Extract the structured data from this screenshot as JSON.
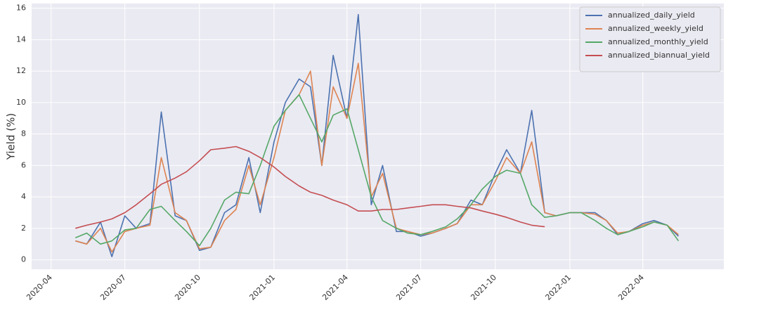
{
  "chart_data": {
    "type": "line",
    "ylabel": "Yield (%)",
    "x": [
      "2020-05-01",
      "2020-05-15",
      "2020-06-01",
      "2020-06-15",
      "2020-07-01",
      "2020-07-15",
      "2020-08-01",
      "2020-08-15",
      "2020-09-01",
      "2020-09-15",
      "2020-10-01",
      "2020-10-15",
      "2020-11-01",
      "2020-11-15",
      "2020-12-01",
      "2020-12-15",
      "2021-01-01",
      "2021-01-15",
      "2021-02-01",
      "2021-02-15",
      "2021-03-01",
      "2021-03-15",
      "2021-04-01",
      "2021-04-15",
      "2021-05-01",
      "2021-05-15",
      "2021-06-01",
      "2021-06-15",
      "2021-07-01",
      "2021-07-15",
      "2021-08-01",
      "2021-08-15",
      "2021-09-01",
      "2021-09-15",
      "2021-10-01",
      "2021-10-15",
      "2021-11-01",
      "2021-11-15",
      "2021-12-01",
      "2021-12-15",
      "2022-01-01",
      "2022-01-15",
      "2022-02-01",
      "2022-02-15",
      "2022-03-01",
      "2022-03-15",
      "2022-04-01",
      "2022-04-15",
      "2022-05-01",
      "2022-05-15"
    ],
    "series": [
      {
        "name": "annualized_daily_yield",
        "color": "#4c72b0",
        "values": [
          1.2,
          1.0,
          2.4,
          0.2,
          2.8,
          2.0,
          2.3,
          9.4,
          2.8,
          2.5,
          0.6,
          0.8,
          3.0,
          3.5,
          6.5,
          3.0,
          7.5,
          10.0,
          11.5,
          11.0,
          6.0,
          13.0,
          9.0,
          15.6,
          3.5,
          6.0,
          1.8,
          1.8,
          1.5,
          1.7,
          2.0,
          2.3,
          3.8,
          3.5,
          5.5,
          7.0,
          5.5,
          9.5,
          3.0,
          2.8,
          3.0,
          3.0,
          3.0,
          2.5,
          1.6,
          1.8,
          2.3,
          2.5,
          2.2,
          1.5
        ]
      },
      {
        "name": "annualized_weekly_yield",
        "color": "#dd8452",
        "values": [
          1.2,
          1.0,
          2.0,
          0.5,
          1.8,
          2.0,
          2.2,
          6.5,
          3.0,
          2.5,
          0.7,
          0.8,
          2.5,
          3.2,
          6.0,
          3.5,
          6.5,
          9.5,
          10.5,
          12.0,
          6.0,
          11.0,
          9.0,
          12.5,
          4.0,
          5.5,
          2.0,
          1.8,
          1.6,
          1.7,
          2.0,
          2.3,
          3.5,
          3.5,
          5.0,
          6.5,
          5.5,
          7.5,
          3.0,
          2.8,
          3.0,
          3.0,
          2.9,
          2.5,
          1.7,
          1.8,
          2.2,
          2.4,
          2.2,
          1.6
        ]
      },
      {
        "name": "annualized_monthly_yield",
        "color": "#55a868",
        "values": [
          1.4,
          1.7,
          1.0,
          1.2,
          1.9,
          2.0,
          3.2,
          3.4,
          2.5,
          1.8,
          0.9,
          2.0,
          3.8,
          4.3,
          4.2,
          6.0,
          8.5,
          9.5,
          10.5,
          9.0,
          7.5,
          9.2,
          9.6,
          7.0,
          4.0,
          2.5,
          2.0,
          1.7,
          1.6,
          1.8,
          2.1,
          2.6,
          3.5,
          4.5,
          5.3,
          5.7,
          5.5,
          3.5,
          2.7,
          2.8,
          3.0,
          3.0,
          2.5,
          2.0,
          1.6,
          1.8,
          2.1,
          2.4,
          2.2,
          1.2
        ]
      },
      {
        "name": "annualized_biannual_yield",
        "color": "#c44e52",
        "values": [
          2.0,
          2.2,
          2.4,
          2.6,
          3.0,
          3.5,
          4.2,
          4.8,
          5.2,
          5.6,
          6.3,
          7.0,
          7.1,
          7.2,
          6.9,
          6.5,
          5.9,
          5.3,
          4.7,
          4.3,
          4.1,
          3.8,
          3.5,
          3.1,
          3.1,
          3.2,
          3.2,
          3.3,
          3.4,
          3.5,
          3.5,
          3.4,
          3.3,
          3.1,
          2.9,
          2.7,
          2.4,
          2.2,
          2.1,
          null,
          null,
          null,
          null,
          null,
          null,
          null,
          null,
          null,
          null,
          null
        ]
      }
    ],
    "xlim": [
      "2020-03-08",
      "2022-07-10"
    ],
    "xticks": [
      "2020-04",
      "2020-07",
      "2020-10",
      "2021-01",
      "2021-04",
      "2021-07",
      "2021-10",
      "2022-01",
      "2022-04"
    ],
    "ylim": [
      -0.6,
      16.3
    ],
    "yticks": [
      0,
      2,
      4,
      6,
      8,
      10,
      12,
      14,
      16
    ],
    "grid": true,
    "legend": "upper right"
  }
}
